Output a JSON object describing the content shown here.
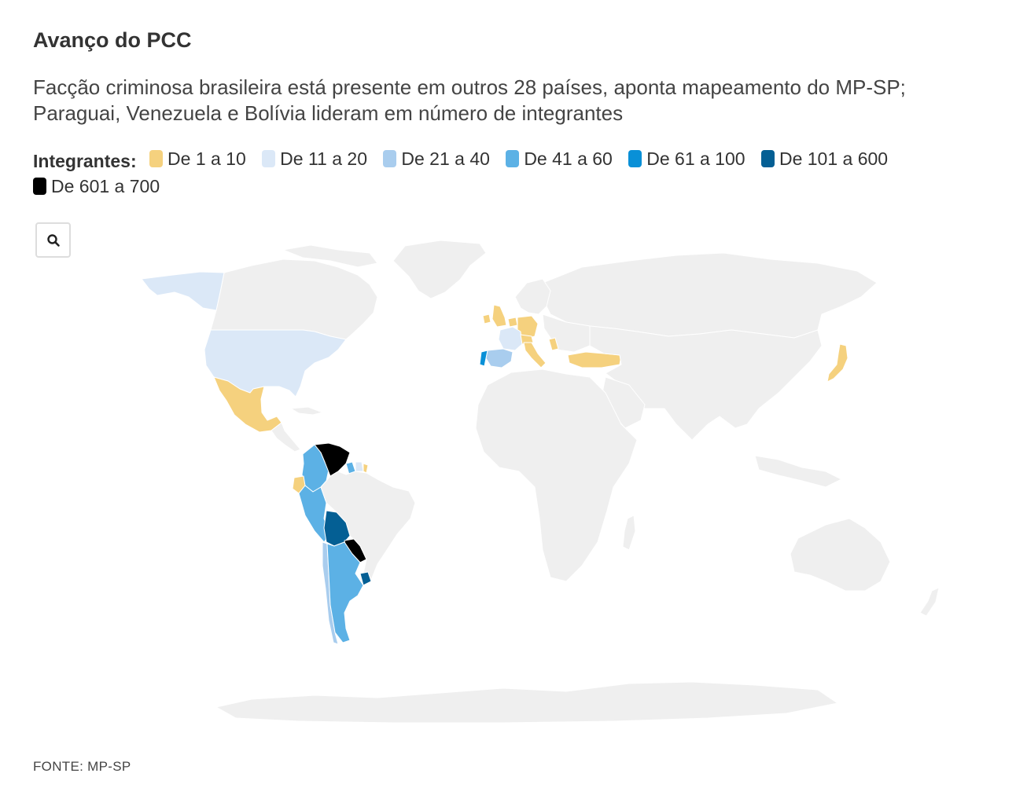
{
  "title": "Avanço do PCC",
  "subtitle": "Facção criminosa brasileira está presente em outros 28 países, aponta mapeamento do MP-SP; Paraguai, Venezuela e Bolívia lideram em número de integrantes",
  "legend": {
    "title": "Integrantes:",
    "items": [
      {
        "label": "De 1 a 10",
        "color": "#f5d17e"
      },
      {
        "label": "De 11 a 20",
        "color": "#dbe8f7"
      },
      {
        "label": "De 21 a 40",
        "color": "#a9cdee"
      },
      {
        "label": "De 41 a 60",
        "color": "#5cb1e5"
      },
      {
        "label": "De 61 a 100",
        "color": "#0990d7"
      },
      {
        "label": "De 101 a 600",
        "color": "#045f94"
      },
      {
        "label": "De 601 a 700",
        "color": "#000000"
      }
    ]
  },
  "zoom_button": {
    "icon": "search-icon"
  },
  "colors": {
    "no_data": "#efefef"
  },
  "source": "FONTE: MP-SP"
}
